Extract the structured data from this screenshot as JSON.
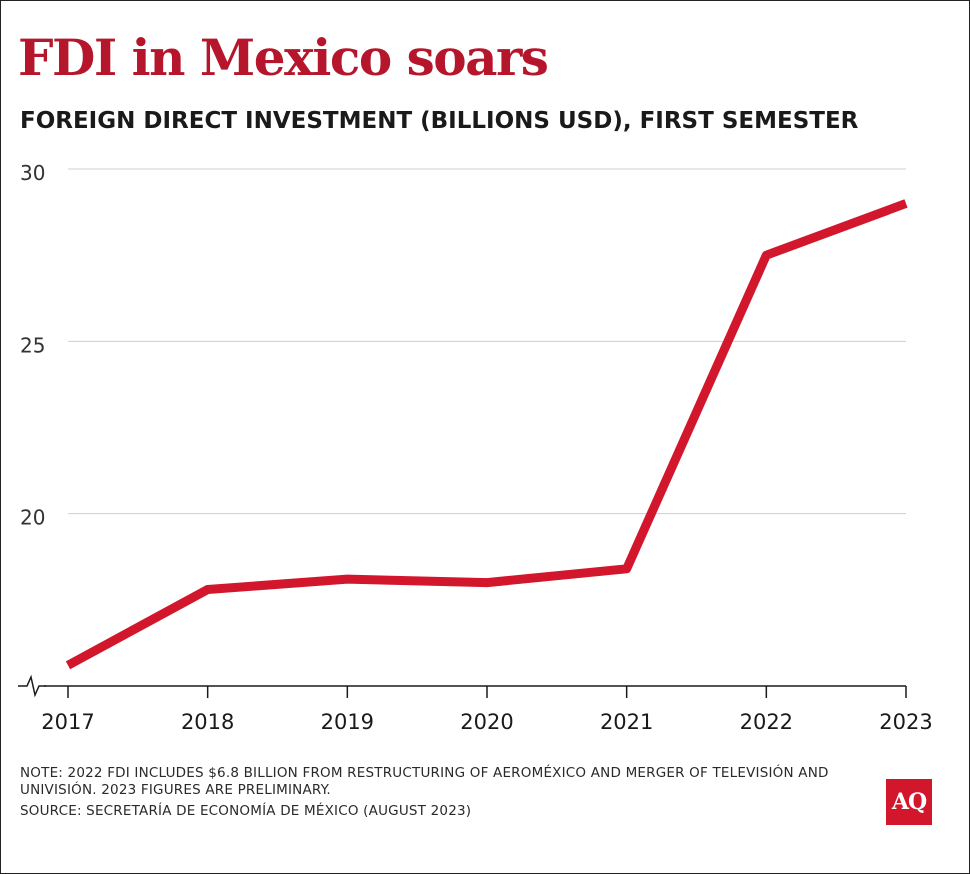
{
  "title": "FDI in Mexico soars",
  "subtitle": "FOREIGN DIRECT INVESTMENT (BILLIONS USD), FIRST SEMESTER",
  "chart_data": {
    "type": "line",
    "title": "FDI in Mexico soars",
    "subtitle": "FOREIGN DIRECT INVESTMENT (BILLIONS USD), FIRST SEMESTER",
    "x": [
      "2017",
      "2018",
      "2019",
      "2020",
      "2021",
      "2022",
      "2023"
    ],
    "y": [
      15.6,
      17.8,
      18.1,
      18.0,
      18.4,
      27.5,
      29.0
    ],
    "ylim": [
      15,
      30
    ],
    "yticks": [
      "20",
      "25",
      "30"
    ],
    "xlabel": "",
    "ylabel": "",
    "grid": true,
    "axis_break": true,
    "colors": {
      "line": "#d2162c",
      "grid": "#cfcfcf",
      "axis": "#1a1a1a",
      "text": "#1a1a1a"
    }
  },
  "notes": {
    "note": "NOTE: 2022 FDI INCLUDES $6.8 BILLION FROM RESTRUCTURING OF AEROMÉXICO AND MERGER OF TELEVISIÓN AND UNIVISIÓN. 2023 FIGURES ARE PRELIMINARY.",
    "source": "SOURCE: SECRETARÍA DE ECONOMÍA DE MÉXICO (AUGUST 2023)"
  },
  "logo": {
    "text": "AQ",
    "color": "#d2162c"
  }
}
